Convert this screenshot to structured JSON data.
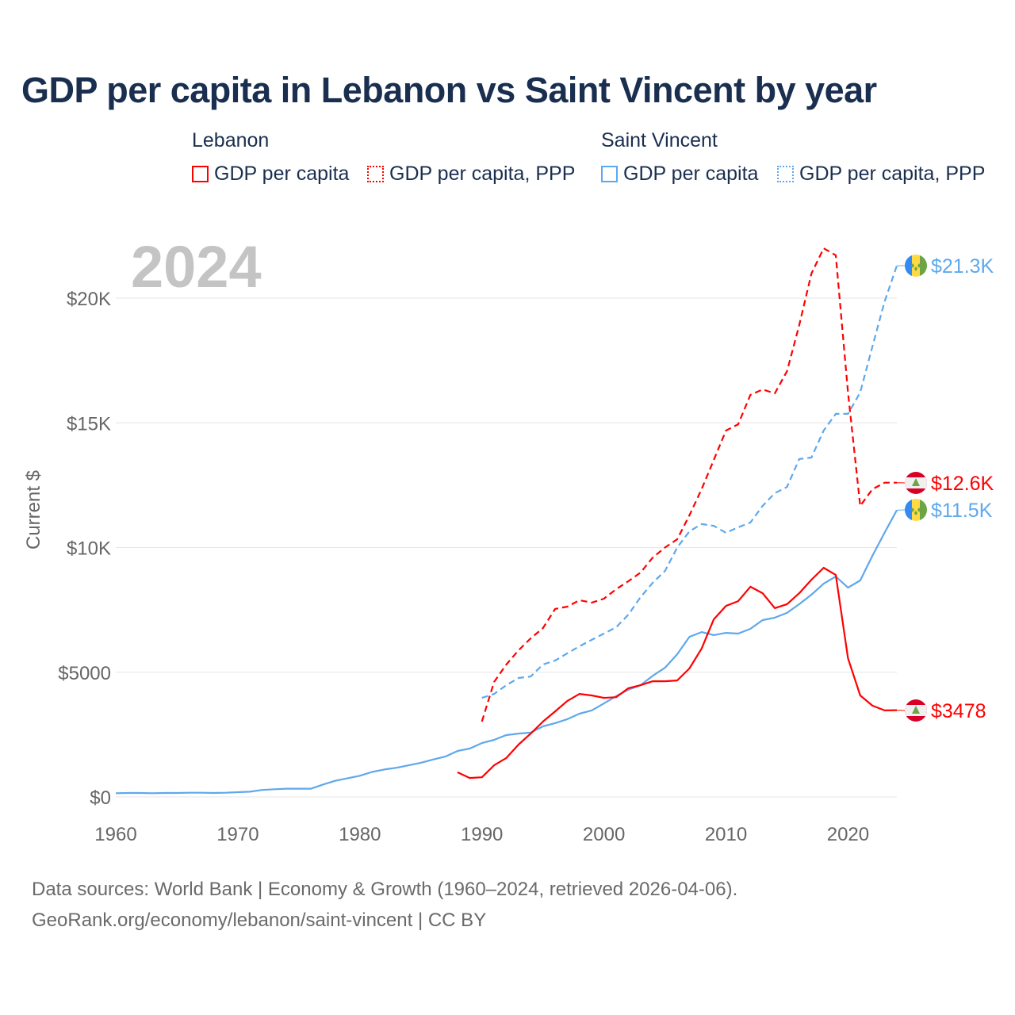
{
  "title": "GDP per capita in Lebanon vs Saint Vincent by year",
  "legend": {
    "groups": [
      {
        "label": "Lebanon",
        "items": [
          {
            "label": "GDP per capita",
            "style": "solid",
            "color": "#ff0000"
          },
          {
            "label": "GDP per capita, PPP",
            "style": "dotted",
            "color": "#ff0000"
          }
        ]
      },
      {
        "label": "Saint Vincent",
        "items": [
          {
            "label": "GDP per capita",
            "style": "solid",
            "color": "#5ea8ec"
          },
          {
            "label": "GDP per capita, PPP",
            "style": "dotted",
            "color": "#5ea8ec"
          }
        ]
      }
    ]
  },
  "year_watermark": "2024",
  "footer": {
    "line1": "Data sources: World Bank | Economy & Growth (1960–2024, retrieved 2026-04-06).",
    "line2": "GeoRank.org/economy/lebanon/saint-vincent | CC BY"
  },
  "chart_data": {
    "type": "line",
    "title": "GDP per capita in Lebanon vs Saint Vincent by year",
    "xlabel": "",
    "ylabel": "Current $",
    "xlim": [
      1960,
      2024
    ],
    "ylim": [
      0,
      22500
    ],
    "grid": true,
    "legend_position": "top",
    "x_ticks": [
      1960,
      1970,
      1980,
      1990,
      2000,
      2010,
      2020
    ],
    "x_tick_labels": [
      "1960",
      "1970",
      "1980",
      "1990",
      "2000",
      "2010",
      "2020"
    ],
    "y_ticks": [
      0,
      5000,
      10000,
      15000,
      20000
    ],
    "y_tick_labels": [
      "$0",
      "$5000",
      "$10K",
      "$15K",
      "$20K"
    ],
    "series": [
      {
        "name": "Saint Vincent GDP per capita",
        "color": "#5ea8ec",
        "dash": false,
        "start_year": 1960,
        "end_label": "$11.5K",
        "flag": "saint-vincent",
        "values": [
          150,
          160,
          160,
          150,
          160,
          160,
          170,
          170,
          160,
          170,
          190,
          210,
          280,
          310,
          330,
          330,
          330,
          500,
          650,
          750,
          850,
          1000,
          1100,
          1170,
          1270,
          1370,
          1500,
          1620,
          1840,
          1940,
          2160,
          2290,
          2480,
          2540,
          2580,
          2830,
          2960,
          3120,
          3340,
          3470,
          3750,
          4040,
          4300,
          4480,
          4860,
          5180,
          5720,
          6420,
          6610,
          6490,
          6580,
          6550,
          6740,
          7090,
          7190,
          7380,
          7730,
          8110,
          8550,
          8840,
          8390,
          8680,
          9670,
          10600,
          11500
        ]
      },
      {
        "name": "Saint Vincent GDP per capita, PPP",
        "color": "#5ea8ec",
        "dash": true,
        "start_year": 1990,
        "end_label": "$21.3K",
        "flag": "saint-vincent",
        "values": [
          3970,
          4130,
          4480,
          4770,
          4830,
          5310,
          5470,
          5760,
          6040,
          6300,
          6550,
          6800,
          7310,
          8010,
          8590,
          9060,
          10000,
          10650,
          10940,
          10870,
          10590,
          10810,
          11000,
          11670,
          12180,
          12430,
          13550,
          13610,
          14690,
          15360,
          15360,
          16220,
          18060,
          19870,
          21300
        ]
      },
      {
        "name": "Lebanon GDP per capita",
        "color": "#ff0000",
        "dash": false,
        "start_year": 1988,
        "end_label": "$3478",
        "flag": "lebanon",
        "values": [
          990,
          760,
          790,
          1270,
          1560,
          2100,
          2540,
          3020,
          3430,
          3850,
          4130,
          4070,
          3970,
          4000,
          4360,
          4480,
          4640,
          4640,
          4670,
          5150,
          5950,
          7120,
          7660,
          7850,
          8430,
          8170,
          7570,
          7730,
          8170,
          8710,
          9190,
          8900,
          5560,
          4070,
          3660,
          3470,
          3478
        ]
      },
      {
        "name": "Lebanon GDP per capita, PPP",
        "color": "#ff0000",
        "dash": true,
        "start_year": 1990,
        "end_label": "$12.6K",
        "flag": "lebanon",
        "values": [
          3020,
          4610,
          5310,
          5880,
          6360,
          6770,
          7540,
          7630,
          7890,
          7790,
          7950,
          8330,
          8650,
          9000,
          9600,
          10000,
          10330,
          11290,
          12340,
          13510,
          14690,
          14940,
          16120,
          16340,
          16180,
          17070,
          18920,
          20990,
          22000,
          21720,
          16220,
          11670,
          12340,
          12600,
          12600
        ]
      }
    ]
  }
}
